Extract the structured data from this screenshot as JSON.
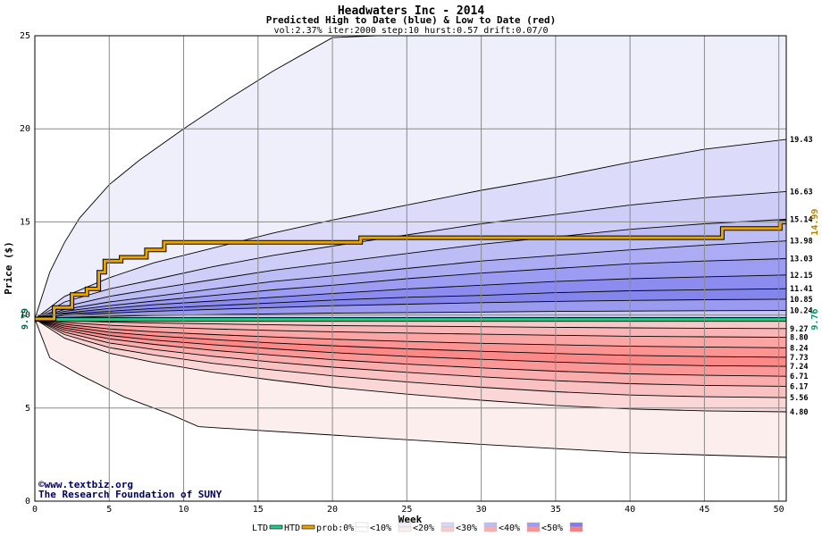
{
  "chart_data": {
    "type": "area",
    "title": "Headwaters Inc - 2014",
    "subtitle": "Predicted High to Date (blue) &  Low to Date (red)",
    "params": "vol:2.37% iter:2000 step:10 hurst:0.57 drift:0.07/0",
    "xlabel": "Week",
    "ylabel": "Price ($)",
    "xlim": [
      0,
      50.5
    ],
    "ylim": [
      0,
      25
    ],
    "xticks": [
      0,
      5,
      10,
      15,
      20,
      25,
      30,
      35,
      40,
      45,
      50
    ],
    "yticks": [
      0,
      5,
      10,
      15,
      20,
      25
    ],
    "grid": true,
    "start_price": 9.79,
    "start_label": "9.79",
    "x": [
      0,
      2,
      5,
      8,
      12,
      16,
      20,
      25,
      30,
      35,
      40,
      45,
      50.5
    ],
    "upper_bands": [
      {
        "end_label": "19.43",
        "values": [
          9.79,
          11.0,
          12.0,
          12.8,
          13.6,
          14.4,
          15.1,
          15.9,
          16.7,
          17.4,
          18.2,
          18.9,
          19.43
        ]
      },
      {
        "end_label": "16.63",
        "values": [
          9.79,
          10.7,
          11.4,
          11.9,
          12.6,
          13.2,
          13.7,
          14.3,
          14.9,
          15.4,
          15.9,
          16.3,
          16.63
        ]
      },
      {
        "end_label": "15.14",
        "values": [
          9.79,
          10.45,
          11.0,
          11.4,
          11.9,
          12.4,
          12.8,
          13.3,
          13.8,
          14.2,
          14.6,
          14.9,
          15.14
        ]
      },
      {
        "end_label": "13.98",
        "values": [
          9.79,
          10.3,
          10.7,
          11.0,
          11.4,
          11.8,
          12.1,
          12.5,
          12.9,
          13.2,
          13.5,
          13.75,
          13.98
        ]
      },
      {
        "end_label": "13.03",
        "values": [
          9.79,
          10.2,
          10.5,
          10.75,
          11.05,
          11.35,
          11.6,
          11.95,
          12.25,
          12.5,
          12.75,
          12.9,
          13.03
        ]
      },
      {
        "end_label": "12.15",
        "values": [
          9.79,
          10.1,
          10.35,
          10.55,
          10.75,
          10.95,
          11.15,
          11.4,
          11.6,
          11.8,
          11.95,
          12.05,
          12.15
        ]
      },
      {
        "end_label": "11.41",
        "values": [
          9.79,
          10.05,
          10.2,
          10.35,
          10.5,
          10.65,
          10.8,
          10.95,
          11.05,
          11.2,
          11.3,
          11.36,
          11.41
        ]
      },
      {
        "end_label": "10.85",
        "values": [
          9.79,
          9.98,
          10.1,
          10.2,
          10.3,
          10.4,
          10.5,
          10.58,
          10.66,
          10.73,
          10.78,
          10.82,
          10.85
        ]
      },
      {
        "end_label": "10.24",
        "values": [
          9.79,
          9.87,
          9.93,
          9.98,
          10.02,
          10.06,
          10.1,
          10.13,
          10.16,
          10.19,
          10.21,
          10.23,
          10.24
        ]
      }
    ],
    "lower_bands": [
      {
        "end_label": "9.27",
        "values": [
          9.79,
          9.7,
          9.62,
          9.57,
          9.52,
          9.47,
          9.43,
          9.4,
          9.37,
          9.34,
          9.31,
          9.29,
          9.27
        ]
      },
      {
        "end_label": "8.80",
        "values": [
          9.79,
          9.6,
          9.45,
          9.35,
          9.25,
          9.17,
          9.1,
          9.03,
          8.97,
          8.91,
          8.86,
          8.83,
          8.8
        ]
      },
      {
        "end_label": "8.24",
        "values": [
          9.79,
          9.5,
          9.25,
          9.1,
          8.95,
          8.82,
          8.7,
          8.58,
          8.48,
          8.4,
          8.32,
          8.28,
          8.24
        ]
      },
      {
        "end_label": "7.73",
        "values": [
          9.79,
          9.4,
          9.08,
          8.88,
          8.68,
          8.5,
          8.35,
          8.18,
          8.05,
          7.93,
          7.83,
          7.77,
          7.73
        ]
      },
      {
        "end_label": "7.24",
        "values": [
          9.79,
          9.3,
          8.9,
          8.65,
          8.4,
          8.18,
          7.98,
          7.78,
          7.62,
          7.47,
          7.35,
          7.28,
          7.24
        ]
      },
      {
        "end_label": "6.71",
        "values": [
          9.79,
          9.2,
          8.72,
          8.42,
          8.1,
          7.84,
          7.6,
          7.36,
          7.16,
          6.98,
          6.84,
          6.76,
          6.71
        ]
      },
      {
        "end_label": "6.17",
        "values": [
          9.79,
          9.08,
          8.5,
          8.15,
          7.78,
          7.47,
          7.2,
          6.92,
          6.68,
          6.47,
          6.31,
          6.22,
          6.17
        ]
      },
      {
        "end_label": "5.56",
        "values": [
          9.79,
          8.95,
          8.25,
          7.85,
          7.4,
          7.05,
          6.73,
          6.4,
          6.12,
          5.88,
          5.7,
          5.61,
          5.56
        ]
      },
      {
        "end_label": "4.80",
        "values": [
          9.79,
          8.75,
          7.95,
          7.45,
          6.92,
          6.5,
          6.12,
          5.75,
          5.42,
          5.14,
          4.95,
          4.85,
          4.8
        ]
      }
    ],
    "outer_upper": {
      "x": [
        0,
        1,
        2,
        3,
        5,
        7,
        10,
        13,
        16,
        18,
        20,
        23,
        50.5
      ],
      "values": [
        9.79,
        12.3,
        13.9,
        15.2,
        17.0,
        18.3,
        20.0,
        21.6,
        23.1,
        24.0,
        24.9,
        25.0,
        25.0
      ]
    },
    "outer_lower": {
      "x": [
        0,
        1,
        3,
        6,
        9,
        11,
        20,
        30,
        40,
        50.5
      ],
      "values": [
        9.79,
        7.7,
        6.8,
        5.6,
        4.7,
        4.0,
        3.55,
        3.05,
        2.6,
        2.35
      ]
    },
    "htd_path": {
      "x": [
        0,
        1.3,
        1.3,
        2.5,
        2.5,
        3.5,
        3.5,
        4.3,
        4.3,
        4.7,
        4.7,
        5.8,
        5.8,
        7.5,
        7.5,
        8.7,
        8.7,
        21.9,
        21.9,
        46.2,
        46.2,
        50.1,
        50.1,
        50.5
      ],
      "values": [
        9.79,
        9.79,
        10.4,
        10.4,
        11.1,
        11.1,
        11.4,
        11.4,
        12.3,
        12.3,
        12.9,
        12.9,
        13.1,
        13.1,
        13.5,
        13.5,
        13.9,
        13.9,
        14.15,
        14.15,
        14.65,
        14.65,
        14.99,
        14.99
      ]
    },
    "htd_end_label": "14.99",
    "ltd_level": 9.76,
    "ltd_end_label": "9.76",
    "colors": {
      "outer_upper": "#efeffc",
      "outer_lower": "#fdeeee",
      "upper_shades": [
        "#dcdcfa",
        "#cdcdf8",
        "#bdbdf6",
        "#acacf4",
        "#9c9cf2",
        "#8c8cf0",
        "#8585ee",
        "#9a9af0",
        "#c5c5f7"
      ],
      "lower_shades": [
        "#f8c9c9",
        "#f9b5b5",
        "#fba5a5",
        "#fd9494",
        "#fd8888",
        "#fc9797",
        "#fbacac",
        "#f9c1c1",
        "#fbd6d6"
      ],
      "htd": "#e8a400",
      "ltd": "#22cc88",
      "htd_label": "#b88000",
      "ltd_label": "#00906a"
    },
    "legend": {
      "ltd": "LTD",
      "htd": "HTD",
      "prob": "prob:0%",
      "entries": [
        "<10%",
        "<20%",
        "<30%",
        "<40%",
        "<50%"
      ],
      "swatches": [
        [
          "#ffffff",
          "#ffffff"
        ],
        [
          "#efeffc",
          "#fdeeee"
        ],
        [
          "#d6d6f9",
          "#f9cccc"
        ],
        [
          "#bcbcf6",
          "#faaeae"
        ],
        [
          "#9c9cf2",
          "#fd9090"
        ],
        [
          "#7c7cef",
          "#fc7c7c"
        ]
      ]
    },
    "watermark": [
      "©www.textbiz.org",
      "The Research Foundation of SUNY"
    ]
  }
}
